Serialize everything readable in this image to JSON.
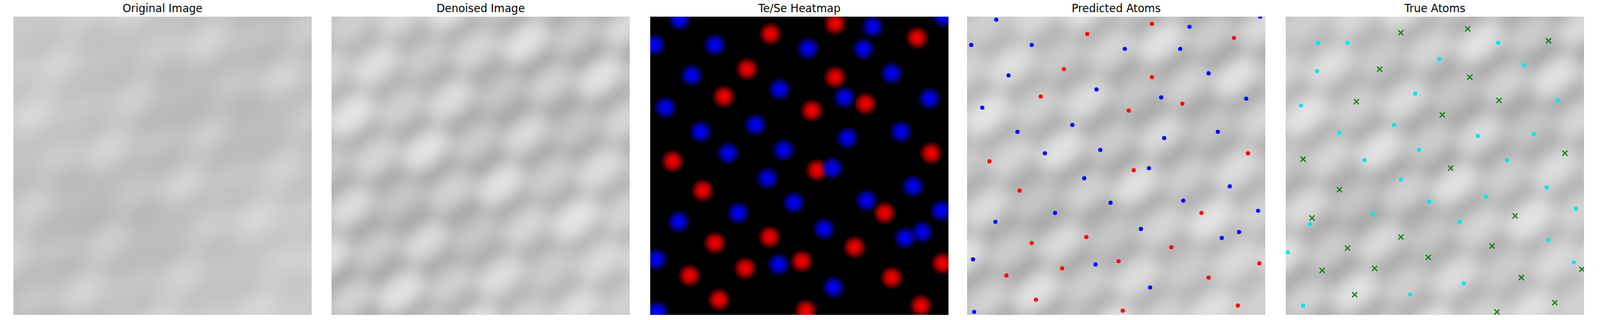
{
  "chart_data": [
    {
      "type": "image",
      "title": "Original Image"
    },
    {
      "type": "image",
      "title": "Denoised Image"
    },
    {
      "type": "heatmap",
      "title": "Te/Se Heatmap",
      "xlim": [
        0,
        100
      ],
      "ylim": [
        0,
        100
      ],
      "tick_labels": false,
      "series": [
        {
          "color": "#ff0000",
          "x": [
            40.3,
            62.0,
            89.5,
            32.5,
            62.0,
            24.7,
            54.2,
            72.2,
            7.5,
            55.9,
            17.6,
            94.2,
            78.6,
            21.7,
            40.0,
            68.5,
            13.2,
            31.9,
            50.8,
            81.0,
            98.0,
            23.1,
            52.2,
            90.8
          ],
          "y": [
            5.8,
            2.4,
            7.1,
            17.6,
            20.3,
            26.8,
            31.5,
            29.2,
            48.5,
            51.5,
            58.3,
            45.8,
            65.8,
            75.9,
            73.9,
            77.3,
            86.8,
            84.4,
            82.0,
            87.5,
            82.7,
            94.9,
            98.6,
            96.9
          ]
        },
        {
          "color": "#0000ff",
          "x": [
            9.8,
            1.4,
            21.7,
            52.9,
            71.5,
            74.6,
            98.3,
            13.9,
            81.0,
            5.1,
            43.4,
            65.1,
            93.6,
            16.9,
            35.3,
            66.1,
            84.1,
            26.1,
            44.7,
            39.3,
            61.0,
            88.1,
            9.5,
            29.5,
            48.1,
            72.5,
            97.6,
            58.3,
            91.2,
            85.4,
            43.1,
            61.4,
            2.0,
            2.4
          ],
          "y": [
            1.0,
            9.5,
            9.5,
            10.8,
            10.8,
            3.4,
            0.0,
            19.7,
            19.0,
            30.5,
            24.4,
            27.1,
            27.5,
            38.6,
            36.3,
            40.7,
            38.6,
            45.8,
            44.7,
            54.2,
            50.8,
            56.9,
            68.8,
            65.8,
            62.4,
            61.7,
            65.1,
            71.2,
            72.2,
            74.2,
            83.1,
            90.8,
            81.4,
            99.0
          ]
        }
      ]
    },
    {
      "type": "scatter",
      "title": "Predicted Atoms",
      "xlim": [
        0,
        100
      ],
      "ylim": [
        0,
        100
      ],
      "tick_labels": false,
      "series": [
        {
          "color": "#ff0000",
          "marker": "o",
          "x": [
            40.3,
            62.0,
            89.5,
            32.5,
            62.0,
            24.7,
            54.2,
            72.2,
            7.5,
            55.9,
            17.6,
            94.2,
            78.6,
            21.7,
            40.0,
            68.5,
            13.2,
            31.9,
            50.8,
            81.0,
            98.0,
            23.1,
            52.2,
            90.8
          ],
          "y": [
            5.8,
            2.4,
            7.1,
            17.6,
            20.3,
            26.8,
            31.5,
            29.2,
            48.5,
            51.5,
            58.3,
            45.8,
            65.8,
            75.9,
            73.9,
            77.3,
            86.8,
            84.4,
            82.0,
            87.5,
            82.7,
            94.9,
            98.6,
            96.9
          ]
        },
        {
          "color": "#0000ff",
          "marker": "o",
          "x": [
            9.8,
            1.4,
            21.7,
            52.9,
            71.5,
            74.6,
            98.3,
            13.9,
            81.0,
            5.1,
            43.4,
            65.1,
            93.6,
            16.9,
            35.3,
            66.1,
            84.1,
            26.1,
            44.7,
            39.3,
            61.0,
            88.1,
            9.5,
            29.5,
            48.1,
            72.5,
            97.6,
            58.3,
            91.2,
            85.4,
            43.1,
            61.4,
            2.0,
            2.4
          ],
          "y": [
            1.0,
            9.5,
            9.5,
            10.8,
            10.8,
            3.4,
            0.0,
            19.7,
            19.0,
            30.5,
            24.4,
            27.1,
            27.5,
            38.6,
            36.3,
            40.7,
            38.6,
            45.8,
            44.7,
            54.2,
            50.8,
            56.9,
            68.8,
            65.8,
            62.4,
            61.7,
            65.1,
            71.2,
            72.2,
            74.2,
            83.1,
            90.8,
            81.4,
            99.0
          ]
        }
      ]
    },
    {
      "type": "scatter",
      "title": "True Atoms",
      "xlim": [
        0,
        100
      ],
      "ylim": [
        0,
        100
      ],
      "tick_labels": false,
      "series": [
        {
          "color": "#00e5ee",
          "marker": "o",
          "x": [
            10.8,
            20.7,
            5.1,
            10.5,
            51.5,
            71.2,
            80.0,
            91.2,
            43.4,
            36.3,
            18.0,
            64.4,
            83.1,
            26.4,
            44.7,
            74.2,
            38.6,
            87.5,
            48.1,
            67.1,
            97.3,
            29.2,
            8.1,
            58.3,
            88.1,
            96.6,
            59.7,
            41.7,
            5.8,
            0.7
          ],
          "y": [
            8.8,
            8.8,
            29.8,
            18.3,
            14.2,
            8.8,
            16.3,
            28.1,
            25.8,
            36.3,
            39.0,
            40.0,
            39.3,
            48.1,
            44.7,
            48.1,
            54.6,
            57.3,
            62.0,
            60.3,
            64.4,
            66.1,
            69.5,
            68.8,
            74.9,
            82.4,
            89.5,
            93.2,
            96.9,
            79.0
          ]
        },
        {
          "color": "#008000",
          "marker": "x",
          "x": [
            38.6,
            61.0,
            88.1,
            31.5,
            61.7,
            23.7,
            71.5,
            52.5,
            93.6,
            5.8,
            55.3,
            18.0,
            76.9,
            8.8,
            20.7,
            38.6,
            69.2,
            47.8,
            12.2,
            29.8,
            79.0,
            99.3,
            23.1,
            70.8,
            90.2
          ],
          "y": [
            5.4,
            4.1,
            8.1,
            17.6,
            20.3,
            28.5,
            28.1,
            32.9,
            45.8,
            47.8,
            50.8,
            58.0,
            66.8,
            67.5,
            77.6,
            73.9,
            76.9,
            80.7,
            85.1,
            84.4,
            87.5,
            84.7,
            93.2,
            99.0,
            95.9
          ]
        }
      ]
    }
  ]
}
